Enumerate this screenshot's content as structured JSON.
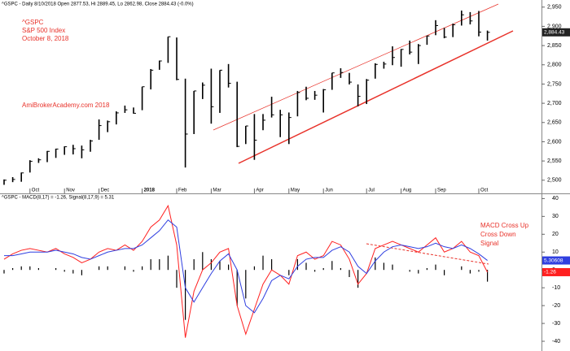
{
  "chart_data": [
    {
      "type": "ohlc",
      "title": "^GSPC - Daily 8/10/2018 Open 2877.53, Hi 2889.45, Lo 2862.98, Close 2884.43 (-0.0%)",
      "annotations": [
        "^GSPC",
        "S&P 500  Index",
        "October 8, 2018",
        "AmiBrokerAcademy.com  2018"
      ],
      "categories": [
        null,
        null,
        null,
        "Oct",
        null,
        null,
        null,
        "Nov",
        null,
        null,
        null,
        "Dec",
        null,
        null,
        null,
        null,
        "2018",
        null,
        null,
        null,
        "Feb",
        null,
        null,
        null,
        "Mar",
        null,
        null,
        null,
        null,
        "Apr",
        null,
        null,
        null,
        "May",
        null,
        null,
        null,
        "Jun",
        null,
        null,
        null,
        null,
        "Jul",
        null,
        null,
        null,
        "Aug",
        null,
        null,
        null,
        "Sep",
        null,
        null,
        null,
        null,
        "Oct",
        null
      ],
      "color": "#000000",
      "high": [
        2502,
        2508,
        2520,
        2552,
        2557,
        2576,
        2582,
        2588,
        2592,
        2590,
        2605,
        2658,
        2655,
        2679,
        2694,
        2689,
        2743,
        2789,
        2811,
        2873,
        2871,
        2764,
        2732,
        2754,
        2790,
        2786,
        2802,
        2756,
        2641,
        2672,
        2672,
        2717,
        2683,
        2676,
        2732,
        2743,
        2732,
        2737,
        2779,
        2791,
        2779,
        2749,
        2763,
        2804,
        2808,
        2848,
        2841,
        2863,
        2854,
        2876,
        2916,
        2896,
        2907,
        2941,
        2937,
        2940,
        2889
      ],
      "low": [
        2488,
        2495,
        2496,
        2520,
        2545,
        2547,
        2558,
        2566,
        2567,
        2557,
        2574,
        2605,
        2625,
        2645,
        2675,
        2673,
        2682,
        2736,
        2787,
        2805,
        2760,
        2533,
        2620,
        2711,
        2647,
        2675,
        2741,
        2586,
        2594,
        2553,
        2630,
        2663,
        2612,
        2594,
        2666,
        2708,
        2709,
        2676,
        2735,
        2766,
        2749,
        2692,
        2698,
        2764,
        2790,
        2799,
        2795,
        2827,
        2802,
        2852,
        2877,
        2869,
        2872,
        2902,
        2905,
        2874,
        2863
      ],
      "close": [
        2500,
        2502,
        2519,
        2549,
        2553,
        2575,
        2581,
        2587,
        2582,
        2579,
        2602,
        2642,
        2652,
        2675,
        2683,
        2674,
        2743,
        2786,
        2810,
        2873,
        2762,
        2620,
        2732,
        2747,
        2691,
        2786,
        2752,
        2588,
        2641,
        2604,
        2656,
        2670,
        2670,
        2663,
        2728,
        2713,
        2721,
        2735,
        2779,
        2780,
        2755,
        2718,
        2760,
        2801,
        2802,
        2819,
        2840,
        2833,
        2850,
        2875,
        2902,
        2872,
        2904,
        2930,
        2914,
        2885,
        2884.43
      ],
      "last_label": "2,884.43",
      "ylim": [
        2470,
        2960
      ],
      "yticks": [
        {
          "value": 2500,
          "label": "2,500"
        },
        {
          "value": 2550,
          "label": "2,550"
        },
        {
          "value": 2600,
          "label": "2,600"
        },
        {
          "value": 2650,
          "label": "2,650"
        },
        {
          "value": 2700,
          "label": "2,700"
        },
        {
          "value": 2750,
          "label": "2,750"
        },
        {
          "value": 2800,
          "label": "2,800"
        },
        {
          "value": 2850,
          "label": "2,850"
        },
        {
          "value": 2900,
          "label": "2,900"
        },
        {
          "value": 2950,
          "label": "2,950"
        }
      ]
    },
    {
      "type": "macd",
      "title": "^GSPC - MACD(8,17) = -1.26, Signal(8,17,9) = 5.31",
      "annotations": [
        "MACD Cross Up",
        "Cross Down",
        "Signal"
      ],
      "series": [
        {
          "name": "MACD",
          "color": "#ff2020",
          "values": [
            6,
            9,
            11,
            12,
            11,
            10,
            12,
            9,
            7,
            4,
            6,
            10,
            12,
            11,
            14,
            11,
            16,
            24,
            28,
            36,
            14,
            -38,
            -12,
            0,
            4,
            10,
            12,
            -20,
            -36,
            -22,
            -8,
            0,
            -3,
            -8,
            8,
            10,
            6,
            8,
            16,
            14,
            6,
            -8,
            -2,
            12,
            14,
            16,
            14,
            12,
            10,
            14,
            18,
            10,
            12,
            16,
            10,
            8,
            -1.26
          ],
          "value_label": "-1.26"
        },
        {
          "name": "Signal",
          "color": "#2f3fe0",
          "values": [
            8,
            8,
            9,
            10,
            10,
            10,
            11,
            10,
            9,
            7,
            6,
            8,
            10,
            11,
            12,
            12,
            14,
            18,
            22,
            28,
            24,
            -10,
            -18,
            -10,
            -2,
            5,
            9,
            0,
            -20,
            -24,
            -16,
            -6,
            -3,
            -5,
            2,
            6,
            7,
            7,
            11,
            13,
            10,
            2,
            -2,
            5,
            10,
            13,
            14,
            13,
            12,
            13,
            15,
            13,
            12,
            14,
            12,
            9,
            5.30608
          ],
          "value_label": "5.30608"
        }
      ],
      "histogram": {
        "color": "#000000",
        "values": [
          -2,
          1,
          2,
          2,
          1,
          0,
          1,
          -1,
          -2,
          -3,
          0,
          2,
          2,
          0,
          2,
          -1,
          2,
          6,
          6,
          8,
          -10,
          -28,
          6,
          10,
          6,
          5,
          3,
          -20,
          -16,
          2,
          8,
          6,
          0,
          -3,
          6,
          4,
          -1,
          1,
          5,
          1,
          -4,
          -10,
          0,
          7,
          4,
          3,
          0,
          -1,
          -2,
          1,
          3,
          -3,
          0,
          2,
          -2,
          -1,
          -6.57
        ]
      },
      "ylim": [
        -45,
        42
      ],
      "yticks": [
        -40,
        -30,
        -20,
        -10,
        0,
        10,
        20,
        30,
        40
      ]
    }
  ]
}
